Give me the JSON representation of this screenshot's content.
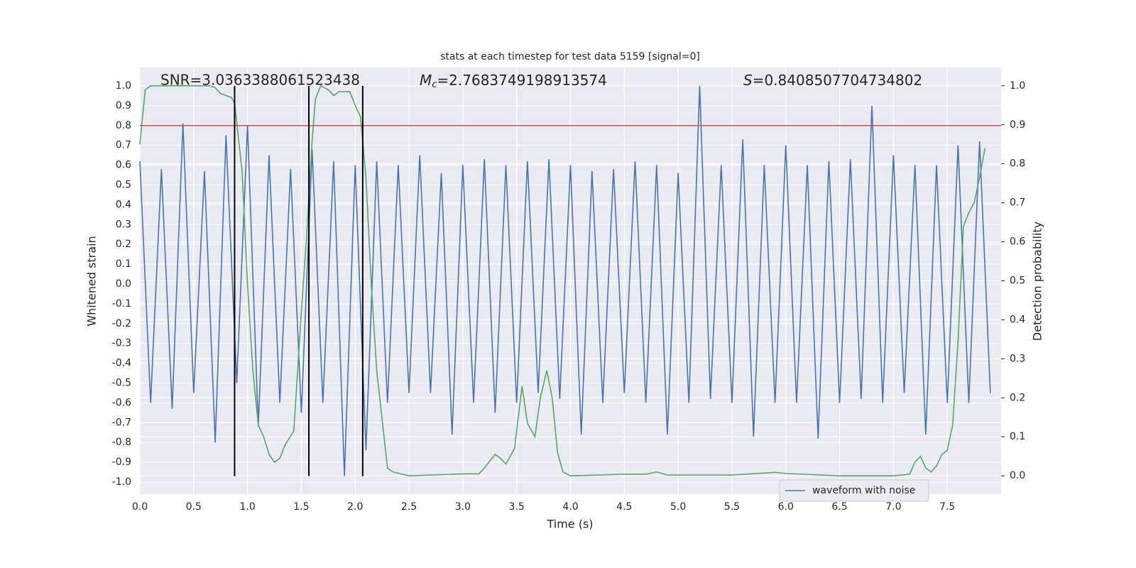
{
  "chart_data": {
    "type": "line",
    "title": "stats at each timestep for test data 5159 [signal=0]",
    "xlabel": "Time (s)",
    "ylabel": "Whitened strain",
    "y2label": "Detection probability",
    "annotations": [
      {
        "text": "SNR=3.0363388061523438"
      },
      {
        "symbol": "M",
        "subscript": "c",
        "text": "=2.7683749198913574"
      },
      {
        "symbol": "S",
        "text": "=0.8408507704734802"
      }
    ],
    "xlim": [
      0,
      8.0
    ],
    "ylim": [
      -1.061,
      1.093
    ],
    "y2lim": [
      -0.047,
      1.047
    ],
    "xticks": [
      {
        "value": 0,
        "label": "0.0"
      },
      0.5,
      {
        "value": 1,
        "label": "1.0"
      },
      1.5,
      {
        "value": 2,
        "label": "2.0"
      },
      2.5,
      {
        "value": 3,
        "label": "3.0"
      },
      3.5,
      {
        "value": 4,
        "label": "4.0"
      },
      4.5,
      {
        "value": 5,
        "label": "5.0"
      },
      5.5,
      {
        "value": 6,
        "label": "6.0"
      },
      6.5,
      {
        "value": 7,
        "label": "7.0"
      },
      7.5
    ],
    "yticks": [
      {
        "value": -1,
        "label": "-1.0"
      },
      -0.9,
      -0.8,
      -0.7,
      -0.6,
      -0.5,
      -0.4,
      -0.3,
      -0.2,
      -0.1,
      {
        "value": 0,
        "label": "0.0"
      },
      0.1,
      0.2,
      0.3,
      0.4,
      0.5,
      0.6,
      0.7,
      0.8,
      0.9,
      {
        "value": 1,
        "label": "1.0"
      }
    ],
    "y2ticks": [
      {
        "value": 0,
        "label": "0.0"
      },
      0.1,
      0.2,
      0.3,
      0.4,
      0.5,
      0.6,
      0.7,
      0.8,
      0.9,
      {
        "value": 1,
        "label": "1.0"
      }
    ],
    "grid": true,
    "legend": "lower right",
    "threshold": {
      "value": 0.8,
      "color": "#c44e52"
    },
    "vlines": {
      "x": [
        0.88,
        1.57,
        2.07
      ],
      "ymin": -0.97,
      "ymax": 1.0,
      "color": "#000000"
    },
    "x": [
      0,
      0.1,
      0.2,
      0.3,
      0.4,
      0.5,
      0.6,
      0.7,
      0.8,
      0.9,
      1.0,
      1.1,
      1.2,
      1.3,
      1.4,
      1.5,
      1.6,
      1.7,
      1.8,
      1.9,
      2.0,
      2.1,
      2.2,
      2.3,
      2.4,
      2.5,
      2.6,
      2.7,
      2.8,
      2.9,
      3.0,
      3.1,
      3.2,
      3.3,
      3.4,
      3.5,
      3.6,
      3.7,
      3.8,
      3.9,
      4.0,
      4.1,
      4.2,
      4.3,
      4.4,
      4.5,
      4.6,
      4.7,
      4.8,
      4.9,
      5.0,
      5.1,
      5.2,
      5.3,
      5.4,
      5.5,
      5.6,
      5.7,
      5.8,
      5.9,
      6.0,
      6.1,
      6.2,
      6.3,
      6.4,
      6.5,
      6.6,
      6.7,
      6.8,
      6.9,
      7.0,
      7.1,
      7.2,
      7.3,
      7.4,
      7.5,
      7.6,
      7.7,
      7.8,
      7.9
    ],
    "series": [
      {
        "name": "waveform with noise",
        "color": "#4c72b0",
        "values": [
          0.62,
          -0.6,
          0.58,
          -0.63,
          0.81,
          -0.55,
          0.57,
          -0.8,
          0.75,
          -0.5,
          0.8,
          -0.72,
          0.65,
          -0.6,
          0.58,
          -0.65,
          0.68,
          -0.6,
          0.62,
          -0.97,
          0.6,
          -0.84,
          0.62,
          -0.6,
          0.6,
          -0.55,
          0.65,
          -0.55,
          0.56,
          -0.76,
          0.6,
          -0.6,
          0.63,
          -0.65,
          0.6,
          -0.6,
          0.62,
          -0.55,
          0.63,
          -0.58,
          0.6,
          -0.76,
          0.57,
          -0.6,
          0.58,
          -0.55,
          0.62,
          -0.6,
          0.6,
          -0.76,
          0.56,
          -0.6,
          1.0,
          -0.58,
          0.6,
          -0.6,
          0.73,
          -0.77,
          0.6,
          -0.6,
          0.7,
          -0.6,
          0.6,
          -0.78,
          0.62,
          -0.6,
          0.63,
          -0.58,
          0.9,
          -0.6,
          0.65,
          -0.55,
          0.6,
          -0.76,
          0.6,
          -0.6,
          0.7,
          -0.6,
          0.72,
          -0.55
        ]
      },
      {
        "color": "#55a868",
        "axis": "y2",
        "x": [
          0,
          0.05,
          0.1,
          0.2,
          0.5,
          0.65,
          0.7,
          0.75,
          0.85,
          0.88,
          0.95,
          1.0,
          1.05,
          1.1,
          1.15,
          1.2,
          1.25,
          1.3,
          1.35,
          1.43,
          1.5,
          1.55,
          1.6,
          1.63,
          1.68,
          1.75,
          1.8,
          1.85,
          1.9,
          1.95,
          2.0,
          2.05,
          2.1,
          2.15,
          2.2,
          2.25,
          2.3,
          2.35,
          2.5,
          3.0,
          3.15,
          3.2,
          3.3,
          3.35,
          3.4,
          3.48,
          3.55,
          3.6,
          3.67,
          3.72,
          3.78,
          3.83,
          3.88,
          3.93,
          4.0,
          4.5,
          4.7,
          4.8,
          4.9,
          5.5,
          5.8,
          5.9,
          6.0,
          6.5,
          7.0,
          7.15,
          7.2,
          7.25,
          7.3,
          7.35,
          7.4,
          7.45,
          7.5,
          7.55,
          7.6,
          7.65,
          7.7,
          7.75,
          7.8,
          7.85
        ],
        "values": [
          0.85,
          0.99,
          1.0,
          1.0,
          1.0,
          1.0,
          0.995,
          0.98,
          0.97,
          0.955,
          0.78,
          0.49,
          0.27,
          0.13,
          0.1,
          0.055,
          0.035,
          0.045,
          0.08,
          0.115,
          0.42,
          0.62,
          0.86,
          0.965,
          1.0,
          0.99,
          0.975,
          0.985,
          0.985,
          0.985,
          0.95,
          0.92,
          0.765,
          0.49,
          0.27,
          0.145,
          0.02,
          0.01,
          0.0,
          0.005,
          0.005,
          0.02,
          0.055,
          0.045,
          0.03,
          0.07,
          0.23,
          0.135,
          0.1,
          0.2,
          0.27,
          0.2,
          0.06,
          0.01,
          0.0,
          0.004,
          0.004,
          0.01,
          0.002,
          0.002,
          0.007,
          0.009,
          0.006,
          0.0,
          0.0,
          0.004,
          0.035,
          0.05,
          0.02,
          0.01,
          0.025,
          0.055,
          0.065,
          0.13,
          0.345,
          0.64,
          0.675,
          0.7,
          0.765,
          0.84
        ]
      }
    ]
  }
}
